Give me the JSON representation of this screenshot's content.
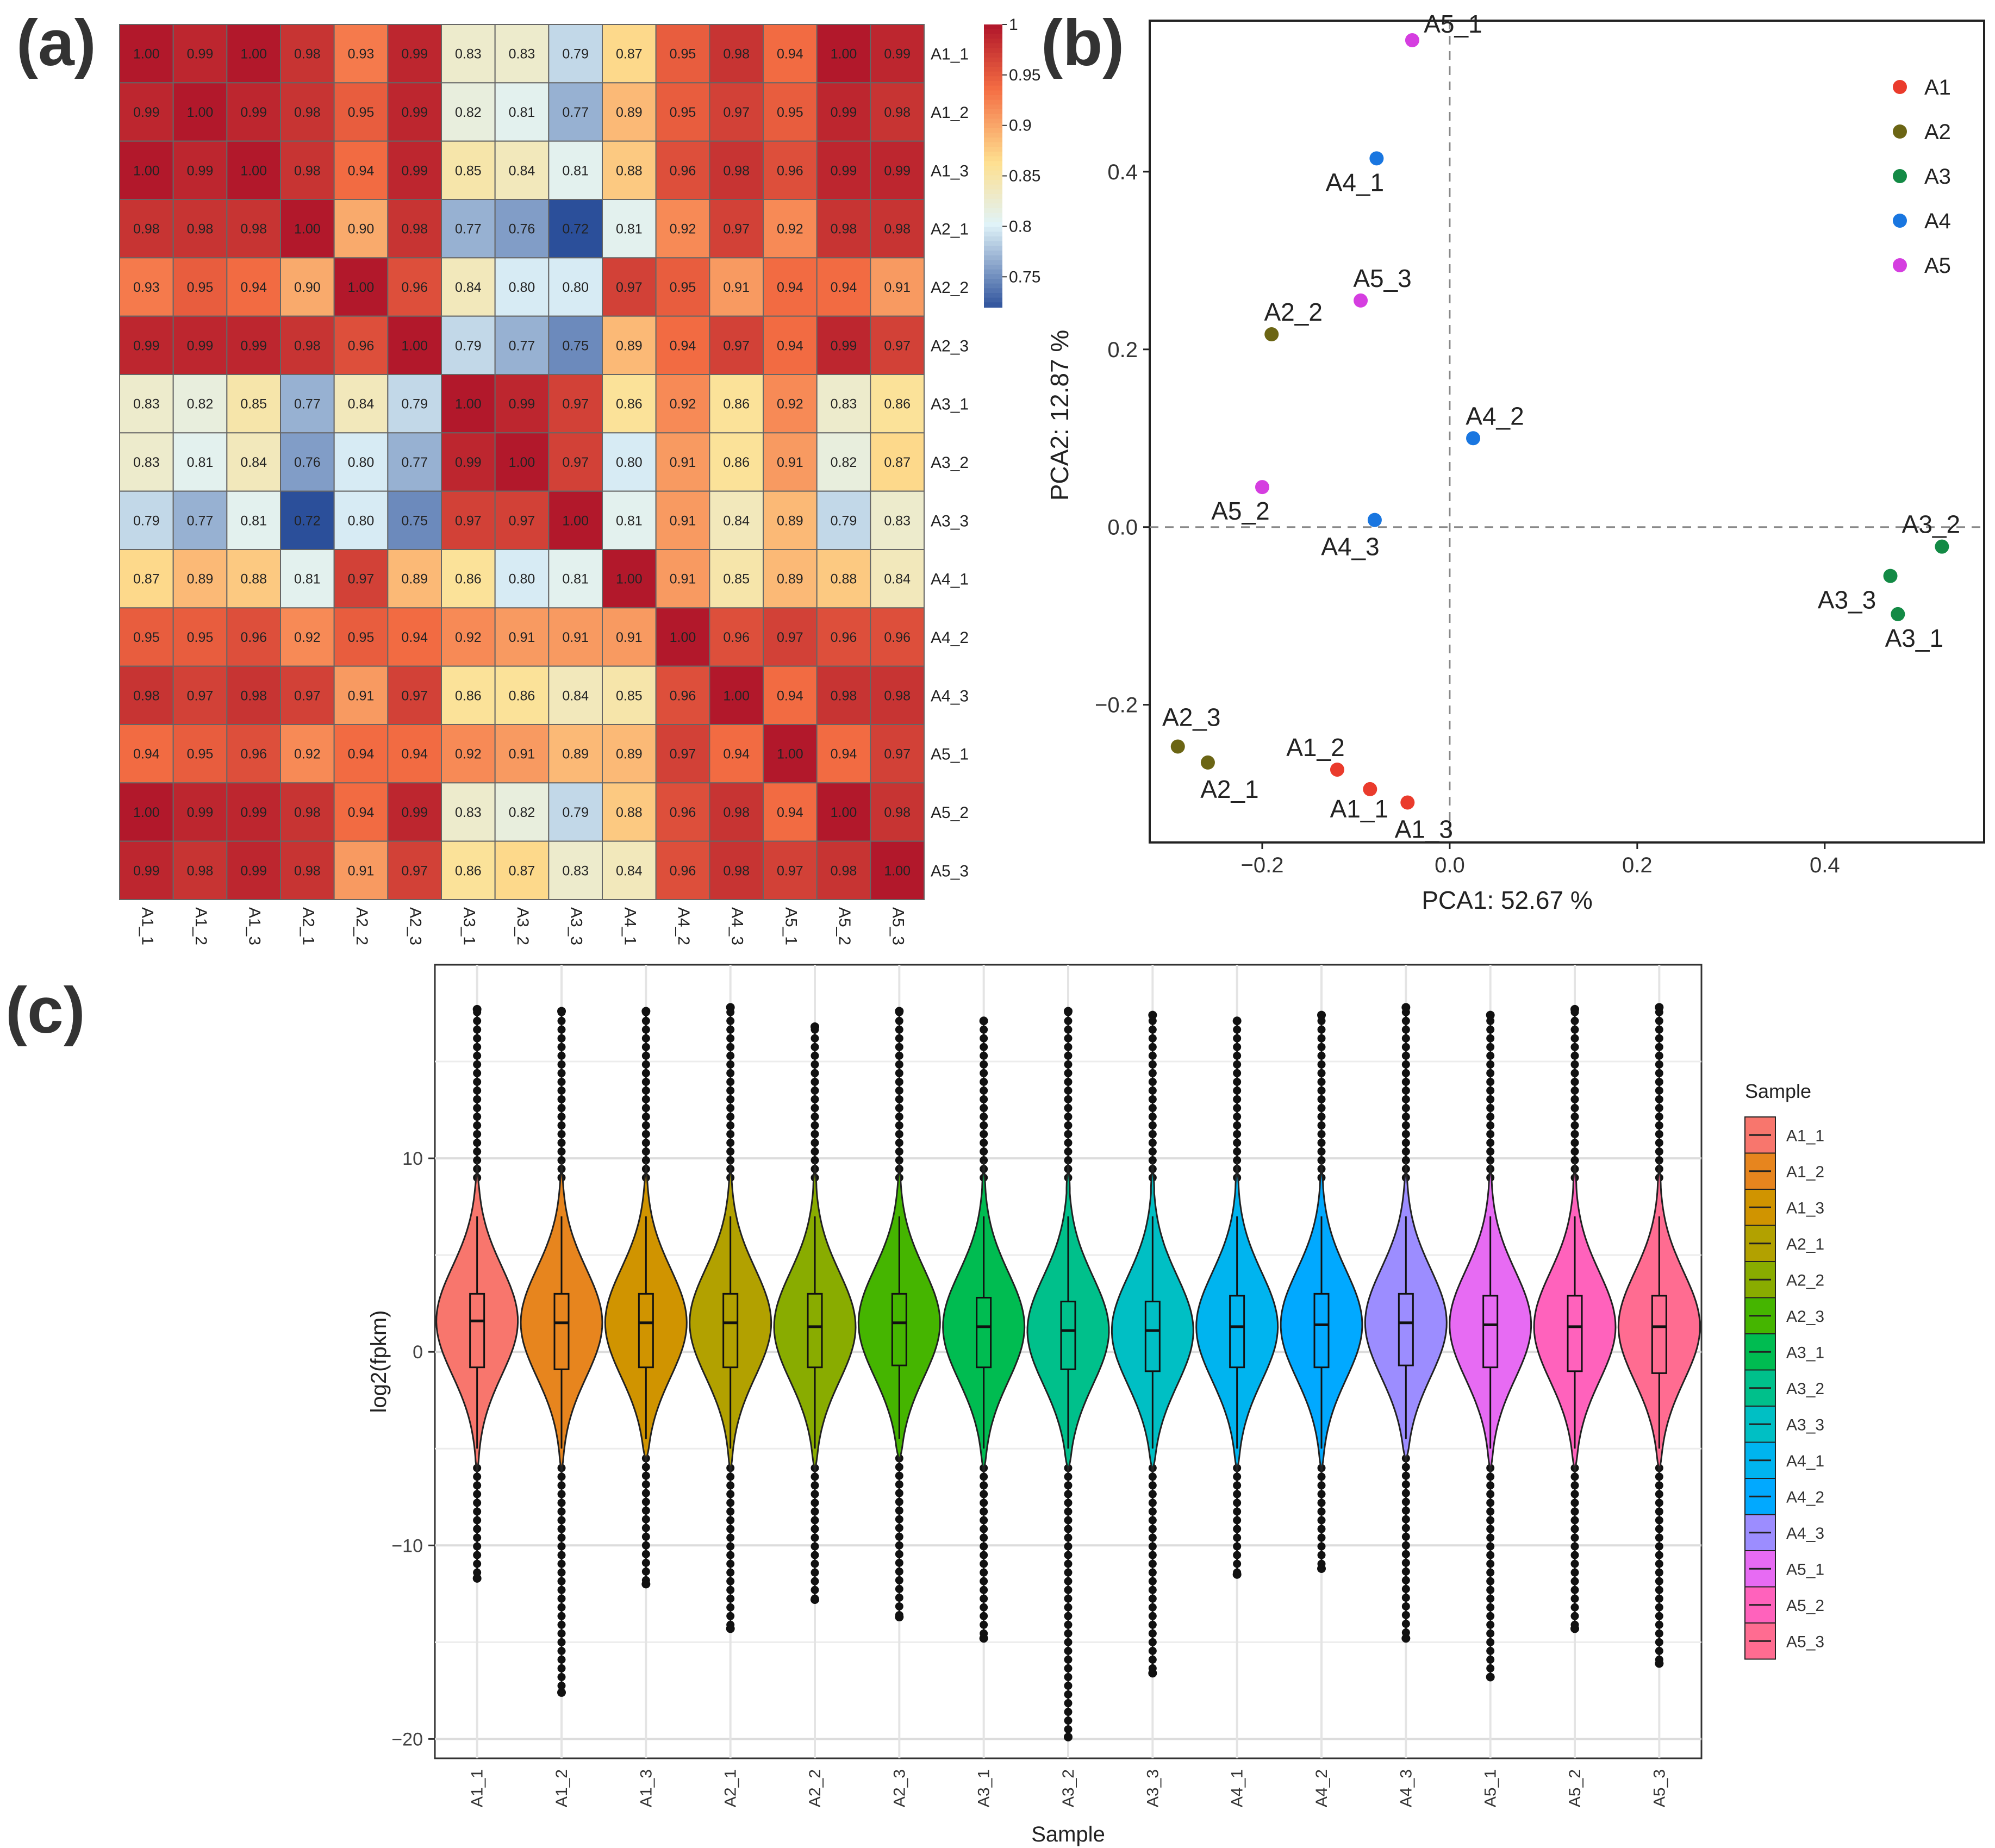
{
  "panel_labels": {
    "a": "(a)",
    "b": "(b)",
    "c": "(c)"
  },
  "chart_data": [
    {
      "panel": "a",
      "type": "heatmap",
      "title": "",
      "rows": [
        "A1_1",
        "A1_2",
        "A1_3",
        "A2_1",
        "A2_2",
        "A2_3",
        "A3_1",
        "A3_2",
        "A3_3",
        "A4_1",
        "A4_2",
        "A4_3",
        "A5_1",
        "A5_2",
        "A5_3"
      ],
      "cols": [
        "A1_1",
        "A1_2",
        "A1_3",
        "A2_1",
        "A2_2",
        "A2_3",
        "A3_1",
        "A3_2",
        "A3_3",
        "A4_1",
        "A4_2",
        "A4_3",
        "A5_1",
        "A5_2",
        "A5_3"
      ],
      "values": [
        [
          "1.00",
          "0.99",
          "1.00",
          "0.98",
          "0.93",
          "0.99",
          "0.83",
          "0.83",
          "0.79",
          "0.87",
          "0.95",
          "0.98",
          "0.94",
          "1.00",
          "0.99"
        ],
        [
          "0.99",
          "1.00",
          "0.99",
          "0.98",
          "0.95",
          "0.99",
          "0.82",
          "0.81",
          "0.77",
          "0.89",
          "0.95",
          "0.97",
          "0.95",
          "0.99",
          "0.98"
        ],
        [
          "1.00",
          "0.99",
          "1.00",
          "0.98",
          "0.94",
          "0.99",
          "0.85",
          "0.84",
          "0.81",
          "0.88",
          "0.96",
          "0.98",
          "0.96",
          "0.99",
          "0.99"
        ],
        [
          "0.98",
          "0.98",
          "0.98",
          "1.00",
          "0.90",
          "0.98",
          "0.77",
          "0.76",
          "0.72",
          "0.81",
          "0.92",
          "0.97",
          "0.92",
          "0.98",
          "0.98"
        ],
        [
          "0.93",
          "0.95",
          "0.94",
          "0.90",
          "1.00",
          "0.96",
          "0.84",
          "0.80",
          "0.80",
          "0.97",
          "0.95",
          "0.91",
          "0.94",
          "0.94",
          "0.91"
        ],
        [
          "0.99",
          "0.99",
          "0.99",
          "0.98",
          "0.96",
          "1.00",
          "0.79",
          "0.77",
          "0.75",
          "0.89",
          "0.94",
          "0.97",
          "0.94",
          "0.99",
          "0.97"
        ],
        [
          "0.83",
          "0.82",
          "0.85",
          "0.77",
          "0.84",
          "0.79",
          "1.00",
          "0.99",
          "0.97",
          "0.86",
          "0.92",
          "0.86",
          "0.92",
          "0.83",
          "0.86"
        ],
        [
          "0.83",
          "0.81",
          "0.84",
          "0.76",
          "0.80",
          "0.77",
          "0.99",
          "1.00",
          "0.97",
          "0.80",
          "0.91",
          "0.86",
          "0.91",
          "0.82",
          "0.87"
        ],
        [
          "0.79",
          "0.77",
          "0.81",
          "0.72",
          "0.80",
          "0.75",
          "0.97",
          "0.97",
          "1.00",
          "0.81",
          "0.91",
          "0.84",
          "0.89",
          "0.79",
          "0.83"
        ],
        [
          "0.87",
          "0.89",
          "0.88",
          "0.81",
          "0.97",
          "0.89",
          "0.86",
          "0.80",
          "0.81",
          "1.00",
          "0.91",
          "0.85",
          "0.89",
          "0.88",
          "0.84"
        ],
        [
          "0.95",
          "0.95",
          "0.96",
          "0.92",
          "0.95",
          "0.94",
          "0.92",
          "0.91",
          "0.91",
          "0.91",
          "1.00",
          "0.96",
          "0.97",
          "0.96",
          "0.96"
        ],
        [
          "0.98",
          "0.97",
          "0.98",
          "0.97",
          "0.91",
          "0.97",
          "0.86",
          "0.86",
          "0.84",
          "0.85",
          "0.96",
          "1.00",
          "0.94",
          "0.98",
          "0.98"
        ],
        [
          "0.94",
          "0.95",
          "0.96",
          "0.92",
          "0.94",
          "0.94",
          "0.92",
          "0.91",
          "0.89",
          "0.89",
          "0.97",
          "0.94",
          "1.00",
          "0.94",
          "0.97"
        ],
        [
          "1.00",
          "0.99",
          "0.99",
          "0.98",
          "0.94",
          "0.99",
          "0.83",
          "0.82",
          "0.79",
          "0.88",
          "0.96",
          "0.98",
          "0.94",
          "1.00",
          "0.98"
        ],
        [
          "0.99",
          "0.98",
          "0.99",
          "0.98",
          "0.91",
          "0.97",
          "0.86",
          "0.87",
          "0.83",
          "0.84",
          "0.96",
          "0.98",
          "0.97",
          "0.98",
          "1.00"
        ]
      ],
      "colorbar": {
        "ticks": [
          "1",
          "0.95",
          "0.9",
          "0.85",
          "0.8",
          "0.75"
        ],
        "range": [
          0.72,
          1.0
        ]
      },
      "colors": {
        "high": "#b2182b",
        "mid_high": "#f46d43",
        "mid": "#fee090",
        "low_mid": "#e0f3f8",
        "low": "#2b4f9a"
      }
    },
    {
      "panel": "b",
      "type": "scatter",
      "xlabel": "PCA1: 52.67 %",
      "ylabel": "PCA2: 12.87 %",
      "xlim": [
        -0.32,
        0.57
      ],
      "ylim": [
        -0.355,
        0.57
      ],
      "xticks": [
        {
          "v": -0.2,
          "t": "−0.2"
        },
        {
          "v": 0.0,
          "t": "0.0"
        },
        {
          "v": 0.2,
          "t": "0.2"
        },
        {
          "v": 0.4,
          "t": "0.4"
        }
      ],
      "yticks": [
        {
          "v": -0.2,
          "t": "−0.2"
        },
        {
          "v": 0.0,
          "t": "0.0"
        },
        {
          "v": 0.2,
          "t": "0.2"
        },
        {
          "v": 0.4,
          "t": "0.4"
        }
      ],
      "legend": [
        {
          "group": "A1",
          "color": "#ea3b2c"
        },
        {
          "group": "A2",
          "color": "#6b6514"
        },
        {
          "group": "A3",
          "color": "#138a45"
        },
        {
          "group": "A4",
          "color": "#1976e0"
        },
        {
          "group": "A5",
          "color": "#d53ee0"
        }
      ],
      "points": [
        {
          "label": "A1_1",
          "group": "A1",
          "x": -0.085,
          "y": -0.295
        },
        {
          "label": "A1_2",
          "group": "A1",
          "x": -0.12,
          "y": -0.273
        },
        {
          "label": "A1_3",
          "group": "A1",
          "x": -0.045,
          "y": -0.31
        },
        {
          "label": "A2_1",
          "group": "A2",
          "x": -0.258,
          "y": -0.265
        },
        {
          "label": "A2_2",
          "group": "A2",
          "x": -0.19,
          "y": 0.217
        },
        {
          "label": "A2_3",
          "group": "A2",
          "x": -0.29,
          "y": -0.247
        },
        {
          "label": "A3_1",
          "group": "A3",
          "x": 0.478,
          "y": -0.098
        },
        {
          "label": "A3_2",
          "group": "A3",
          "x": 0.525,
          "y": -0.022
        },
        {
          "label": "A3_3",
          "group": "A3",
          "x": 0.47,
          "y": -0.055
        },
        {
          "label": "A4_1",
          "group": "A4",
          "x": -0.078,
          "y": 0.415
        },
        {
          "label": "A4_2",
          "group": "A4",
          "x": 0.025,
          "y": 0.1
        },
        {
          "label": "A4_3",
          "group": "A4",
          "x": -0.08,
          "y": 0.008
        },
        {
          "label": "A5_1",
          "group": "A5",
          "x": -0.04,
          "y": 0.548
        },
        {
          "label": "A5_2",
          "group": "A5",
          "x": -0.2,
          "y": 0.045
        },
        {
          "label": "A5_3",
          "group": "A5",
          "x": -0.095,
          "y": 0.255
        }
      ]
    },
    {
      "panel": "c",
      "type": "violin",
      "xlabel": "Sample",
      "ylabel": "log2(fpkm)",
      "ylim": [
        -21,
        20
      ],
      "yticks": [
        10,
        0,
        -10,
        -20
      ],
      "legend_title": "Sample",
      "series": [
        {
          "name": "A1_1",
          "color": "#f8766d",
          "median": 1.6,
          "q1": -0.8,
          "q3": 3.0,
          "whisker_low": -6.0,
          "whisker_high": 9.0,
          "min": -11.7,
          "max": 17.7
        },
        {
          "name": "A1_2",
          "color": "#e7851e",
          "median": 1.5,
          "q1": -0.9,
          "q3": 3.0,
          "whisker_low": -6.0,
          "whisker_high": 9.0,
          "min": -17.6,
          "max": 17.6
        },
        {
          "name": "A1_3",
          "color": "#d09400",
          "median": 1.5,
          "q1": -0.8,
          "q3": 3.0,
          "whisker_low": -5.5,
          "whisker_high": 9.0,
          "min": -12.0,
          "max": 17.6
        },
        {
          "name": "A2_1",
          "color": "#b2a100",
          "median": 1.5,
          "q1": -0.8,
          "q3": 3.0,
          "whisker_low": -6.0,
          "whisker_high": 9.0,
          "min": -14.3,
          "max": 17.8
        },
        {
          "name": "A2_2",
          "color": "#89ac00",
          "median": 1.3,
          "q1": -0.8,
          "q3": 3.0,
          "whisker_low": -6.0,
          "whisker_high": 9.0,
          "min": -12.8,
          "max": 16.8
        },
        {
          "name": "A2_3",
          "color": "#45b500",
          "median": 1.5,
          "q1": -0.7,
          "q3": 3.0,
          "whisker_low": -5.5,
          "whisker_high": 9.0,
          "min": -13.7,
          "max": 17.6
        },
        {
          "name": "A3_1",
          "color": "#00bc51",
          "median": 1.3,
          "q1": -0.8,
          "q3": 2.8,
          "whisker_low": -6.0,
          "whisker_high": 9.0,
          "min": -14.8,
          "max": 17.1
        },
        {
          "name": "A3_2",
          "color": "#00c08b",
          "median": 1.1,
          "q1": -0.9,
          "q3": 2.6,
          "whisker_low": -6.0,
          "whisker_high": 9.0,
          "min": -19.9,
          "max": 17.6
        },
        {
          "name": "A3_3",
          "color": "#00bfc4",
          "median": 1.1,
          "q1": -1.0,
          "q3": 2.6,
          "whisker_low": -6.0,
          "whisker_high": 9.0,
          "min": -16.6,
          "max": 17.4
        },
        {
          "name": "A4_1",
          "color": "#00b4ef",
          "median": 1.3,
          "q1": -0.8,
          "q3": 2.9,
          "whisker_low": -6.0,
          "whisker_high": 9.0,
          "min": -11.5,
          "max": 17.1
        },
        {
          "name": "A4_2",
          "color": "#01a9ff",
          "median": 1.4,
          "q1": -0.8,
          "q3": 3.0,
          "whisker_low": -6.0,
          "whisker_high": 9.0,
          "min": -11.2,
          "max": 17.4
        },
        {
          "name": "A4_3",
          "color": "#9c8dff",
          "median": 1.5,
          "q1": -0.7,
          "q3": 3.0,
          "whisker_low": -5.5,
          "whisker_high": 9.0,
          "min": -14.8,
          "max": 17.8
        },
        {
          "name": "A5_1",
          "color": "#e76bf3",
          "median": 1.4,
          "q1": -0.8,
          "q3": 2.9,
          "whisker_low": -6.0,
          "whisker_high": 9.0,
          "min": -16.8,
          "max": 17.4
        },
        {
          "name": "A5_2",
          "color": "#ff62bc",
          "median": 1.3,
          "q1": -1.0,
          "q3": 2.9,
          "whisker_low": -6.0,
          "whisker_high": 9.0,
          "min": -14.3,
          "max": 17.7
        },
        {
          "name": "A5_3",
          "color": "#ff6c91",
          "median": 1.3,
          "q1": -1.1,
          "q3": 2.9,
          "whisker_low": -6.0,
          "whisker_high": 9.0,
          "min": -16.1,
          "max": 17.8
        }
      ]
    }
  ]
}
